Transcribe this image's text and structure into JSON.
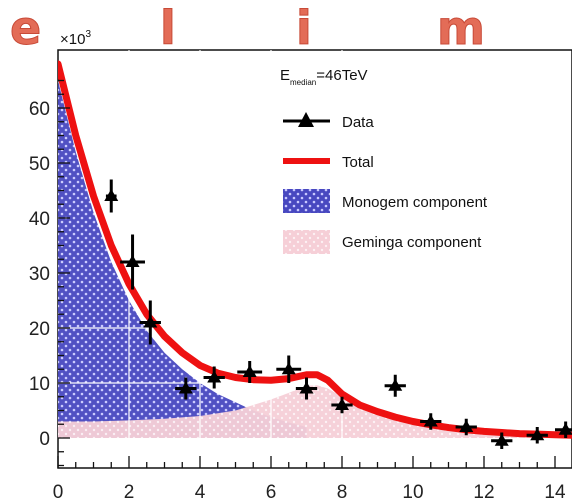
{
  "header": {
    "letters": [
      "e",
      "l",
      "i",
      "m"
    ]
  },
  "chart_data": {
    "type": "line",
    "title": "",
    "xlabel": "",
    "ylabel": "",
    "y_multiplier_label": "×10",
    "y_multiplier_exponent": "3",
    "annotation": {
      "prefix": "E",
      "subscript": "median",
      "suffix": "=46TeV"
    },
    "xlim": [
      0,
      14.5
    ],
    "ylim": [
      -8,
      68
    ],
    "x_ticks": [
      0,
      2,
      4,
      6,
      8,
      10,
      12,
      14
    ],
    "y_ticks": [
      0,
      10,
      20,
      30,
      40,
      50,
      60
    ],
    "legend": {
      "placement": "top-right",
      "entries": [
        "Data",
        "Total",
        "Monogem component",
        "Geminga component"
      ]
    },
    "series": [
      {
        "name": "Data",
        "style": "markers-with-errorbars",
        "color": "#000000",
        "points": [
          {
            "x": 1.5,
            "y": 44.0,
            "xerr": 0.15,
            "yerr": 3.0
          },
          {
            "x": 2.1,
            "y": 32.0,
            "xerr": 0.35,
            "yerr": 5.0
          },
          {
            "x": 2.6,
            "y": 21.0,
            "xerr": 0.3,
            "yerr": 4.0
          },
          {
            "x": 3.6,
            "y": 9.0,
            "xerr": 0.3,
            "yerr": 2.0
          },
          {
            "x": 4.4,
            "y": 11.0,
            "xerr": 0.3,
            "yerr": 2.0
          },
          {
            "x": 5.4,
            "y": 12.0,
            "xerr": 0.35,
            "yerr": 2.0
          },
          {
            "x": 6.5,
            "y": 12.5,
            "xerr": 0.35,
            "yerr": 2.5
          },
          {
            "x": 7.0,
            "y": 9.0,
            "xerr": 0.3,
            "yerr": 2.0
          },
          {
            "x": 8.0,
            "y": 6.0,
            "xerr": 0.3,
            "yerr": 1.5
          },
          {
            "x": 9.5,
            "y": 9.5,
            "xerr": 0.3,
            "yerr": 2.0
          },
          {
            "x": 10.5,
            "y": 3.0,
            "xerr": 0.3,
            "yerr": 1.5
          },
          {
            "x": 11.5,
            "y": 2.0,
            "xerr": 0.3,
            "yerr": 1.5
          },
          {
            "x": 12.5,
            "y": -0.5,
            "xerr": 0.3,
            "yerr": 1.5
          },
          {
            "x": 13.5,
            "y": 0.5,
            "xerr": 0.3,
            "yerr": 1.5
          },
          {
            "x": 14.3,
            "y": 1.5,
            "xerr": 0.3,
            "yerr": 1.5
          }
        ]
      },
      {
        "name": "Total",
        "style": "line",
        "color": "#ee1111",
        "x": [
          0,
          0.5,
          1,
          1.5,
          2,
          2.5,
          3,
          3.5,
          4,
          4.5,
          5,
          5.5,
          6,
          6.5,
          7,
          7.3,
          7.6,
          8,
          8.5,
          9,
          9.5,
          10,
          10.5,
          11,
          11.5,
          12,
          12.5,
          13,
          13.5,
          14,
          14.5
        ],
        "y": [
          68,
          55,
          44,
          35,
          28,
          22.5,
          18.5,
          15.5,
          13.2,
          11.8,
          11.0,
          10.6,
          10.5,
          10.8,
          11.5,
          11.5,
          10.5,
          8.0,
          6.0,
          4.8,
          3.8,
          3.0,
          2.4,
          1.9,
          1.5,
          1.2,
          1.0,
          0.8,
          0.7,
          0.6,
          0.5
        ]
      },
      {
        "name": "Monogem component",
        "style": "filled-area",
        "color": "#4848c0",
        "x": [
          0,
          0.5,
          1,
          1.5,
          2,
          2.5,
          3,
          3.5,
          4,
          4.5,
          5,
          5.5,
          6,
          6.5,
          7
        ],
        "y": [
          65,
          52,
          41,
          32,
          25,
          19.5,
          15.5,
          12.5,
          10.0,
          8.0,
          6.5,
          5.0,
          3.8,
          2.8,
          2.0
        ]
      },
      {
        "name": "Geminga component",
        "style": "filled-area",
        "color": "#f4c6cf",
        "x": [
          0,
          1,
          2,
          3,
          4,
          5,
          6,
          6.5,
          7,
          7.3,
          7.6,
          8,
          8.5,
          9,
          9.5,
          10,
          10.5,
          11,
          11.5,
          12,
          12.5,
          13,
          13.5,
          14,
          14.5
        ],
        "y": [
          3.0,
          3.0,
          3.2,
          3.5,
          4.0,
          5.0,
          7.0,
          8.2,
          9.5,
          9.6,
          9.0,
          7.5,
          5.8,
          4.7,
          3.7,
          3.0,
          2.4,
          1.9,
          1.5,
          1.2,
          1.0,
          0.8,
          0.7,
          0.6,
          0.5
        ]
      }
    ]
  }
}
